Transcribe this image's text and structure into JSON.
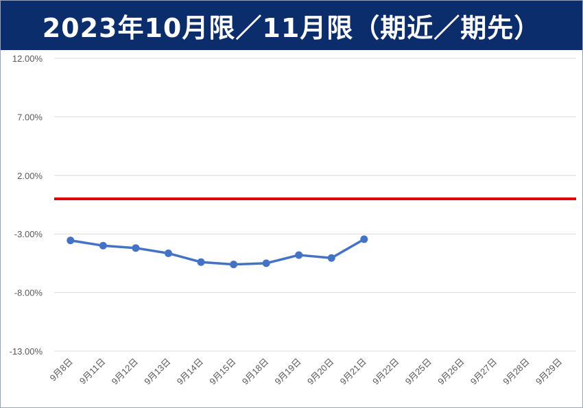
{
  "title": "2023年10月限／11月限（期近／期先）",
  "colors": {
    "header_bg": "#0b2d6b",
    "series": "#4472c4",
    "reference": "#e00000",
    "grid": "#d9d9d9"
  },
  "chart_data": {
    "type": "line",
    "title": "2023年10月限／11月限（期近／期先）",
    "xlabel": "",
    "ylabel": "",
    "ylim": [
      -13,
      12
    ],
    "y_ticks": [
      12,
      7,
      2,
      -3,
      -8,
      -13
    ],
    "y_tick_labels": [
      "12.00%",
      "7.00%",
      "2.00%",
      "-3.00%",
      "-8.00%",
      "-13.00%"
    ],
    "categories": [
      "9月8日",
      "9月11日",
      "9月12日",
      "9月13日",
      "9月14日",
      "9月15日",
      "9月18日",
      "9月19日",
      "9月20日",
      "9月21日",
      "9月22日",
      "9月25日",
      "9月26日",
      "9月27日",
      "9月28日",
      "9月29日"
    ],
    "series": [
      {
        "values": [
          -3.55,
          -4.0,
          -4.2,
          -4.65,
          -5.4,
          -5.6,
          -5.5,
          -4.8,
          -5.05,
          -3.45,
          null,
          null,
          null,
          null,
          null,
          null
        ]
      }
    ],
    "reference_line": {
      "y": 0
    },
    "grid": true,
    "legend": "none"
  }
}
